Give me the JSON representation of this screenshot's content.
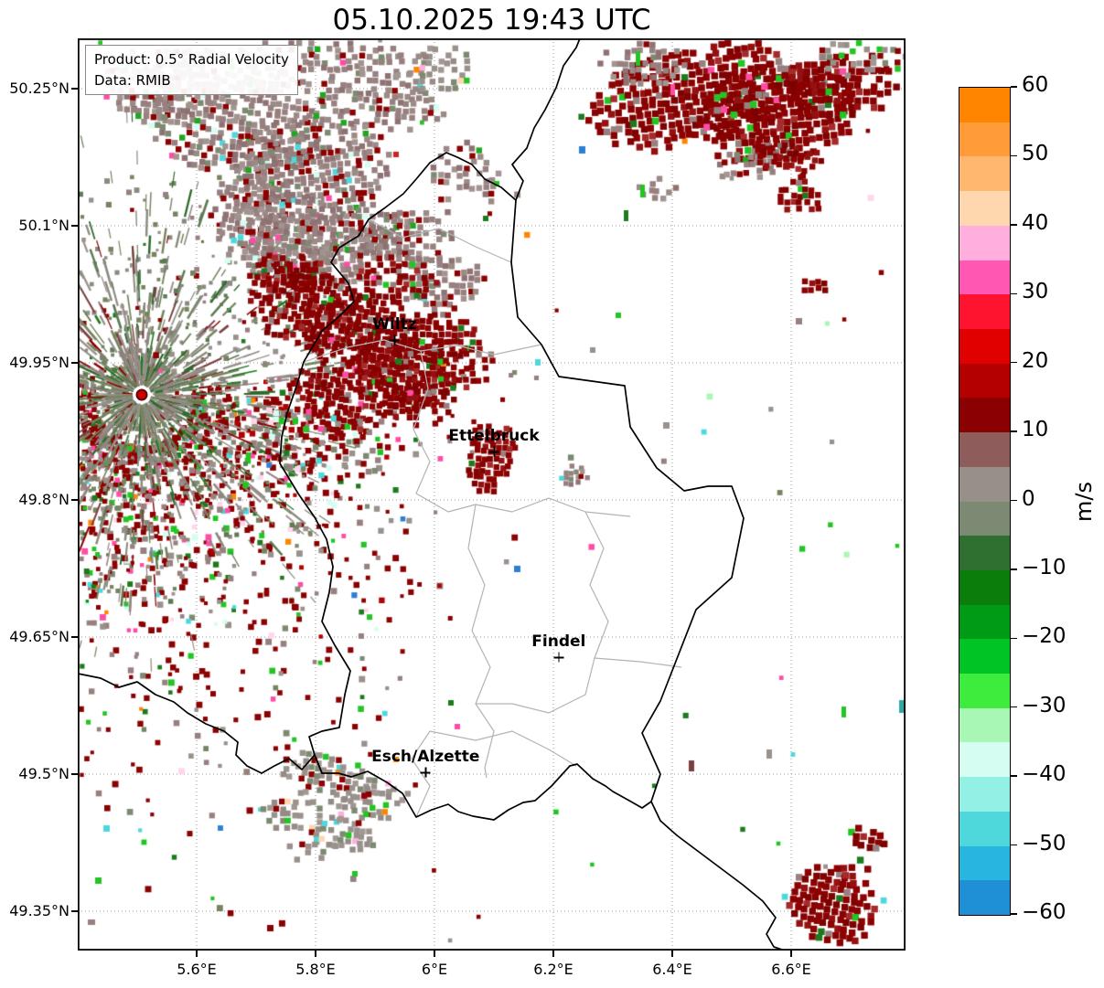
{
  "title": "05.10.2025 19:43 UTC",
  "product_box": {
    "line1": "Product: 0.5° Radial Velocity",
    "line2": "Data: RMIB"
  },
  "axes": {
    "lat_ticks": [
      {
        "label": "50.25°N",
        "value": 50.25
      },
      {
        "label": "50.1°N",
        "value": 50.1
      },
      {
        "label": "49.95°N",
        "value": 49.95
      },
      {
        "label": "49.8°N",
        "value": 49.8
      },
      {
        "label": "49.65°N",
        "value": 49.65
      },
      {
        "label": "49.5°N",
        "value": 49.5
      },
      {
        "label": "49.35°N",
        "value": 49.35
      }
    ],
    "lon_ticks": [
      {
        "label": "5.6°E",
        "value": 5.6
      },
      {
        "label": "5.8°E",
        "value": 5.8
      },
      {
        "label": "6°E",
        "value": 6.0
      },
      {
        "label": "6.2°E",
        "value": 6.2
      },
      {
        "label": "6.4°E",
        "value": 6.4
      },
      {
        "label": "6.6°E",
        "value": 6.6
      }
    ]
  },
  "cities": [
    {
      "name": "Wiltz",
      "lon": 5.933,
      "lat": 49.975
    },
    {
      "name": "Ettelbruck",
      "lon": 6.1,
      "lat": 49.853
    },
    {
      "name": "Findel",
      "lon": 6.209,
      "lat": 49.628
    },
    {
      "name": "Esch/Alzette",
      "lon": 5.985,
      "lat": 49.502
    }
  ],
  "radar_site": {
    "lon": 5.508,
    "lat": 49.915,
    "dot_color": "#d10000"
  },
  "colorbar": {
    "label": "m/s",
    "min": -60,
    "max": 60,
    "ticks": [
      {
        "label": "60",
        "value": 60
      },
      {
        "label": "50",
        "value": 50
      },
      {
        "label": "40",
        "value": 40
      },
      {
        "label": "30",
        "value": 30
      },
      {
        "label": "20",
        "value": 20
      },
      {
        "label": "10",
        "value": 10
      },
      {
        "label": "0",
        "value": 0
      },
      {
        "label": "−10",
        "value": -10
      },
      {
        "label": "−20",
        "value": -20
      },
      {
        "label": "−30",
        "value": -30
      },
      {
        "label": "−40",
        "value": -40
      },
      {
        "label": "−50",
        "value": -50
      },
      {
        "label": "−60",
        "value": -60
      }
    ],
    "segments": [
      {
        "from": 55,
        "to": 60,
        "color": "#ff8400"
      },
      {
        "from": 50,
        "to": 55,
        "color": "#ff9b38"
      },
      {
        "from": 45,
        "to": 50,
        "color": "#ffb66e"
      },
      {
        "from": 40,
        "to": 45,
        "color": "#ffd7ae"
      },
      {
        "from": 35,
        "to": 40,
        "color": "#ffaede"
      },
      {
        "from": 30,
        "to": 35,
        "color": "#ff57b2"
      },
      {
        "from": 25,
        "to": 30,
        "color": "#ff1430"
      },
      {
        "from": 20,
        "to": 25,
        "color": "#e00000"
      },
      {
        "from": 15,
        "to": 20,
        "color": "#b40000"
      },
      {
        "from": 10,
        "to": 15,
        "color": "#8b0000"
      },
      {
        "from": 5,
        "to": 10,
        "color": "#8f5c5c"
      },
      {
        "from": 0,
        "to": 5,
        "color": "#969089"
      },
      {
        "from": -5,
        "to": 0,
        "color": "#7c8a74"
      },
      {
        "from": -10,
        "to": -5,
        "color": "#2f7030"
      },
      {
        "from": -15,
        "to": -10,
        "color": "#0b7d0b"
      },
      {
        "from": -20,
        "to": -15,
        "color": "#009b14"
      },
      {
        "from": -25,
        "to": -20,
        "color": "#00c426"
      },
      {
        "from": -30,
        "to": -25,
        "color": "#3dec3d"
      },
      {
        "from": -35,
        "to": -30,
        "color": "#a9f7b5"
      },
      {
        "from": -40,
        "to": -35,
        "color": "#d6fdf1"
      },
      {
        "from": -45,
        "to": -40,
        "color": "#93f0e4"
      },
      {
        "from": -50,
        "to": -45,
        "color": "#4fd8dc"
      },
      {
        "from": -55,
        "to": -50,
        "color": "#28b6e0"
      },
      {
        "from": -60,
        "to": -55,
        "color": "#1f8fd6"
      }
    ]
  },
  "chart_data": {
    "type": "heatmap",
    "title": "05.10.2025 19:43 UTC",
    "product": "0.5° Radial Velocity",
    "source": "RMIB",
    "x_axis": {
      "name": "longitude",
      "tick_labels": [
        "5.6°E",
        "5.8°E",
        "6°E",
        "6.2°E",
        "6.4°E",
        "6.6°E"
      ],
      "range_deg_e": [
        5.4,
        6.79
      ]
    },
    "y_axis": {
      "name": "latitude",
      "tick_labels": [
        "50.25°N",
        "50.1°N",
        "49.95°N",
        "49.8°N",
        "49.65°N",
        "49.5°N",
        "49.35°N"
      ],
      "range_deg_n": [
        49.31,
        50.3
      ]
    },
    "colorbar": {
      "label": "m/s",
      "range": [
        -60,
        60
      ],
      "tick_values": [
        60,
        50,
        40,
        30,
        20,
        10,
        0,
        -10,
        -20,
        -30,
        -40,
        -50,
        -60
      ]
    },
    "annotations": [
      "Wiltz",
      "Ettelbruck",
      "Findel",
      "Esch/Alzette"
    ],
    "radar_site": {
      "lon": 5.508,
      "lat": 49.915
    },
    "echo_regions": [
      {
        "area": "northwest quadrant around Wiltz and Belgian border",
        "radial_velocity_m_s": "+10 to +20 (dark red) over 0 to +10 gray-brown speckle"
      },
      {
        "area": "radar site near 5.51E 49.91N",
        "radial_velocity_m_s": "near 0 gray/green ground-clutter radial spokes with red center dot"
      },
      {
        "area": "northeast corner (Germany)",
        "radial_velocity_m_s": "+10 to +20 dark red precipitation band"
      },
      {
        "area": "compact cell just west of Ettelbruck",
        "radial_velocity_m_s": "+10 to +20"
      },
      {
        "area": "southeast corner near Moselle river",
        "radial_velocity_m_s": "+10 to +20 blob"
      },
      {
        "area": "south-southwest border zone",
        "radial_velocity_m_s": "0 to +10 gray patches with scattered colored pixels"
      }
    ]
  }
}
